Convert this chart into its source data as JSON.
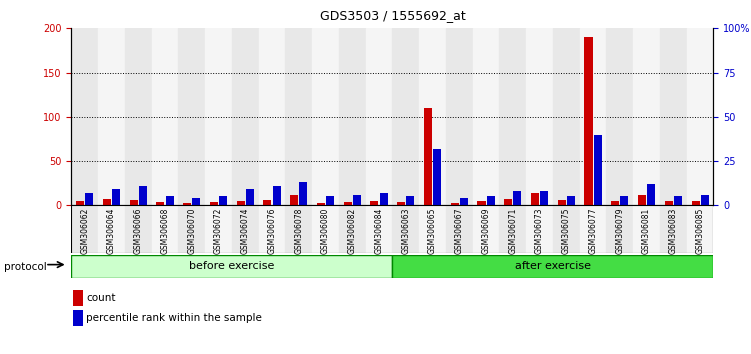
{
  "title": "GDS3503 / 1555692_at",
  "categories": [
    "GSM306062",
    "GSM306064",
    "GSM306066",
    "GSM306068",
    "GSM306070",
    "GSM306072",
    "GSM306074",
    "GSM306076",
    "GSM306078",
    "GSM306080",
    "GSM306082",
    "GSM306084",
    "GSM306063",
    "GSM306065",
    "GSM306067",
    "GSM306069",
    "GSM306071",
    "GSM306073",
    "GSM306075",
    "GSM306077",
    "GSM306079",
    "GSM306081",
    "GSM306083",
    "GSM306085"
  ],
  "count_values": [
    5,
    7,
    6,
    4,
    3,
    4,
    5,
    6,
    12,
    3,
    4,
    5,
    4,
    110,
    3,
    5,
    7,
    14,
    6,
    190,
    5,
    12,
    5,
    5
  ],
  "percentile_values": [
    7,
    9,
    11,
    5,
    4,
    5,
    9,
    11,
    13,
    5,
    6,
    7,
    5,
    32,
    4,
    5,
    8,
    8,
    5,
    40,
    5,
    12,
    5,
    6
  ],
  "before_exercise_count": 12,
  "after_exercise_count": 12,
  "ylim_left": [
    0,
    200
  ],
  "ylim_right": [
    0,
    100
  ],
  "yticks_left": [
    0,
    50,
    100,
    150,
    200
  ],
  "yticks_right": [
    0,
    25,
    50,
    75,
    100
  ],
  "ytick_labels_right": [
    "0",
    "25",
    "50",
    "75",
    "100%"
  ],
  "count_color": "#cc0000",
  "percentile_color": "#0000cc",
  "before_exercise_color": "#ccffcc",
  "after_exercise_color": "#44dd44",
  "protocol_label": "protocol",
  "before_label": "before exercise",
  "after_label": "after exercise",
  "legend_count": "count",
  "legend_percentile": "percentile rank within the sample",
  "bar_width": 0.3,
  "col_bg_even": "#e8e8e8",
  "col_bg_odd": "#f5f5f5"
}
